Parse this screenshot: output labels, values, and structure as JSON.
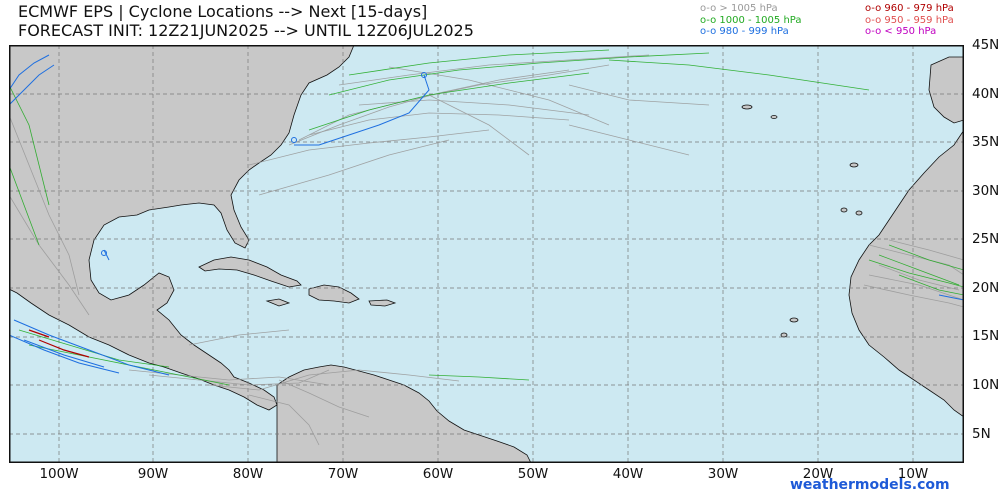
{
  "header": {
    "title_line1": "ECMWF EPS | Cyclone Locations --> Next [15-days]",
    "title_line2": "FORECAST INIT: 12Z21JUN2025 --> UNTIL 12Z06JUL2025"
  },
  "legend": {
    "left": [
      {
        "label": "o-o > 1005 hPa",
        "color": "#9a9a9a"
      },
      {
        "label": "o-o 1000 - 1005 hPa",
        "color": "#22aa22"
      },
      {
        "label": "o-o 980 - 999 hPa",
        "color": "#1e6fe0"
      }
    ],
    "right": [
      {
        "label": "o-o 960 - 979 hPa",
        "color": "#b00000"
      },
      {
        "label": "o-o 950 - 959 hPa",
        "color": "#e05050"
      },
      {
        "label": "o-o < 950 hPa",
        "color": "#c000c0"
      }
    ]
  },
  "map": {
    "ocean_color": "#cde9f2",
    "land_color": "#c8c8c8",
    "lat_labels": [
      "45N",
      "40N",
      "35N",
      "30N",
      "25N",
      "20N",
      "15N",
      "10N",
      "5N"
    ],
    "lon_labels": [
      "100W",
      "90W",
      "80W",
      "70W",
      "60W",
      "50W",
      "40W",
      "30W",
      "20W",
      "10W"
    ]
  },
  "credit": "weathermodels.com"
}
